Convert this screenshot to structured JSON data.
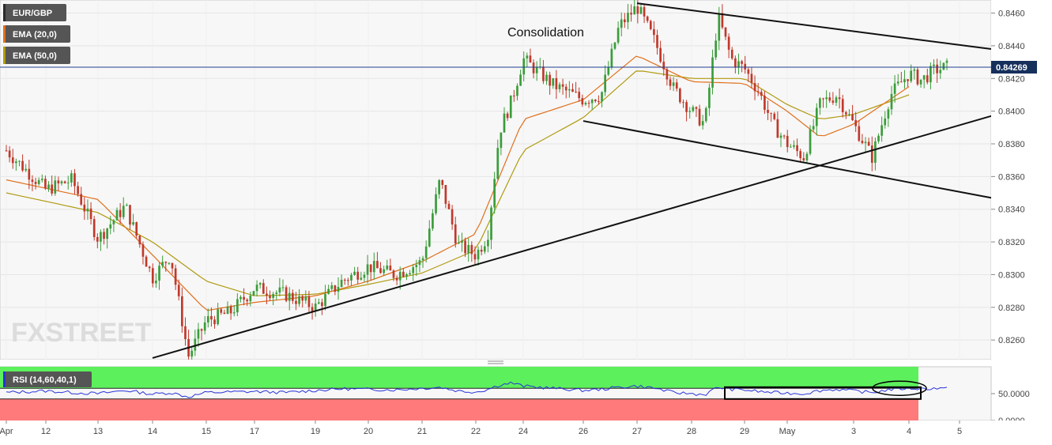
{
  "chart_data": {
    "type": "candlestick",
    "symbol": "EUR/GBP",
    "legend": [
      {
        "label": "EUR/GBP",
        "color": "#2b2b2b"
      },
      {
        "label": "EMA (20,0)",
        "color": "#e0701c"
      },
      {
        "label": "EMA (50,0)",
        "color": "#b09a10"
      }
    ],
    "annotation": "Consolidation",
    "watermark": "FXSTREET",
    "last_price": "0.84269",
    "last_price_value": 0.84269,
    "ylim": [
      0.8248,
      0.8468
    ],
    "y_ticks": [
      "0.8460",
      "0.8440",
      "0.8420",
      "0.8400",
      "0.8380",
      "0.8360",
      "0.8340",
      "0.8320",
      "0.8300",
      "0.8280",
      "0.8260"
    ],
    "x_ticks": [
      "Apr",
      "12",
      "13",
      "14",
      "15",
      "17",
      "19",
      "20",
      "21",
      "22",
      "24",
      "26",
      "27",
      "28",
      "29",
      "May",
      "3",
      "4",
      "5"
    ],
    "price_path": [
      [
        "Apr",
        0.8376
      ],
      [
        "12",
        0.8352
      ],
      [
        "12",
        0.8358
      ],
      [
        "13",
        0.8322
      ],
      [
        "13",
        0.8342
      ],
      [
        "14",
        0.8298
      ],
      [
        "14",
        0.8312
      ],
      [
        "14",
        0.825
      ],
      [
        "15",
        0.8272
      ],
      [
        "15",
        0.8277
      ],
      [
        "17",
        0.8292
      ],
      [
        "17",
        0.8288
      ],
      [
        "19",
        0.828
      ],
      [
        "19",
        0.8296
      ],
      [
        "20",
        0.8305
      ],
      [
        "20",
        0.83
      ],
      [
        "21",
        0.8308
      ],
      [
        "21",
        0.8358
      ],
      [
        "21",
        0.8318
      ],
      [
        "22",
        0.8312
      ],
      [
        "22",
        0.8324
      ],
      [
        "22",
        0.8388
      ],
      [
        "22",
        0.8406
      ],
      [
        "24",
        0.8432
      ],
      [
        "24",
        0.8416
      ],
      [
        "26",
        0.8407
      ],
      [
        "26",
        0.841
      ],
      [
        "26",
        0.8452
      ],
      [
        "27",
        0.8464
      ],
      [
        "27",
        0.8442
      ],
      [
        "27",
        0.8414
      ],
      [
        "28",
        0.84
      ],
      [
        "28",
        0.8392
      ],
      [
        "28",
        0.8458
      ],
      [
        "28",
        0.8432
      ],
      [
        "29",
        0.8426
      ],
      [
        "29",
        0.8412
      ],
      [
        "29",
        0.8392
      ],
      [
        "May",
        0.838
      ],
      [
        "May",
        0.8372
      ],
      [
        "May",
        0.8405
      ],
      [
        "May",
        0.841
      ],
      [
        "3",
        0.8392
      ],
      [
        "3",
        0.8372
      ],
      [
        "3",
        0.841
      ],
      [
        "4",
        0.8423
      ],
      [
        "4",
        0.8419
      ],
      [
        "4",
        0.8425
      ],
      [
        "4",
        0.84269
      ]
    ],
    "ema20": [
      [
        "Apr",
        0.8358
      ],
      [
        "13",
        0.8346
      ],
      [
        "14",
        0.8312
      ],
      [
        "15",
        0.8278
      ],
      [
        "17",
        0.8283
      ],
      [
        "19",
        0.8287
      ],
      [
        "20",
        0.8296
      ],
      [
        "21",
        0.8308
      ],
      [
        "22",
        0.8325
      ],
      [
        "24",
        0.8395
      ],
      [
        "26",
        0.8407
      ],
      [
        "27",
        0.8434
      ],
      [
        "28",
        0.8418
      ],
      [
        "29",
        0.8417
      ],
      [
        "May",
        0.84
      ],
      [
        "May",
        0.8384
      ],
      [
        "3",
        0.8392
      ],
      [
        "4",
        0.8415
      ]
    ],
    "ema50": [
      [
        "Apr",
        0.835
      ],
      [
        "13",
        0.8338
      ],
      [
        "14",
        0.832
      ],
      [
        "15",
        0.8296
      ],
      [
        "17",
        0.8287
      ],
      [
        "19",
        0.8288
      ],
      [
        "20",
        0.8294
      ],
      [
        "21",
        0.8301
      ],
      [
        "22",
        0.8315
      ],
      [
        "24",
        0.8376
      ],
      [
        "26",
        0.8396
      ],
      [
        "27",
        0.8425
      ],
      [
        "28",
        0.842
      ],
      [
        "29",
        0.842
      ],
      [
        "May",
        0.8404
      ],
      [
        "May",
        0.8395
      ],
      [
        "3",
        0.8398
      ],
      [
        "4",
        0.841
      ]
    ],
    "trendlines": [
      {
        "name": "upper-channel-line",
        "from": [
          "27",
          0.8466
        ],
        "to": [
          "5",
          0.8438
        ]
      },
      {
        "name": "lower-channel-line",
        "from": [
          "26",
          0.8394
        ],
        "to": [
          "5",
          0.8347
        ]
      },
      {
        "name": "rising-support-line",
        "from": [
          "14",
          0.8249
        ],
        "to": [
          "5",
          0.8397
        ]
      }
    ],
    "rsi": {
      "label": "RSI (14,60,40,1)",
      "upper_band": 60,
      "lower_band": 40,
      "ylim": [
        0,
        100
      ],
      "y_ticks": [
        "50.0000",
        "0.0000"
      ],
      "values": [
        [
          "Apr",
          52
        ],
        [
          "12",
          55
        ],
        [
          "12",
          52
        ],
        [
          "13",
          50
        ],
        [
          "13",
          56
        ],
        [
          "14",
          49
        ],
        [
          "14",
          52
        ],
        [
          "14",
          44
        ],
        [
          "15",
          52
        ],
        [
          "15",
          53
        ],
        [
          "17",
          54
        ],
        [
          "17",
          52
        ],
        [
          "19",
          56
        ],
        [
          "19",
          59
        ],
        [
          "20",
          58
        ],
        [
          "20",
          57
        ],
        [
          "21",
          60
        ],
        [
          "21",
          62
        ],
        [
          "21",
          55
        ],
        [
          "22",
          53
        ],
        [
          "22",
          58
        ],
        [
          "22",
          66
        ],
        [
          "22",
          70
        ],
        [
          "24",
          64
        ],
        [
          "24",
          60
        ],
        [
          "26",
          56
        ],
        [
          "26",
          58
        ],
        [
          "26",
          62
        ],
        [
          "27",
          64
        ],
        [
          "27",
          60
        ],
        [
          "27",
          52
        ],
        [
          "28",
          50
        ],
        [
          "28",
          48
        ],
        [
          "28",
          62
        ],
        [
          "28",
          58
        ],
        [
          "29",
          57
        ],
        [
          "29",
          54
        ],
        [
          "29",
          52
        ],
        [
          "May",
          51
        ],
        [
          "May",
          50
        ],
        [
          "May",
          56
        ],
        [
          "May",
          58
        ],
        [
          "3",
          55
        ],
        [
          "3",
          52
        ],
        [
          "3",
          58
        ],
        [
          "4",
          60
        ],
        [
          "4",
          59
        ],
        [
          "4",
          60
        ],
        [
          "4",
          59
        ]
      ]
    },
    "colors": {
      "bull": "#3a9d3a",
      "bear": "#c0392b",
      "ema20": "#e0701c",
      "ema50": "#b09a10",
      "rsi_line": "#2733d8",
      "rsi_upper_zone": "#5cf05c",
      "rsi_lower_zone": "#ff7a7a",
      "price_line": "#1f3f8f",
      "trendline": "#111111"
    }
  }
}
